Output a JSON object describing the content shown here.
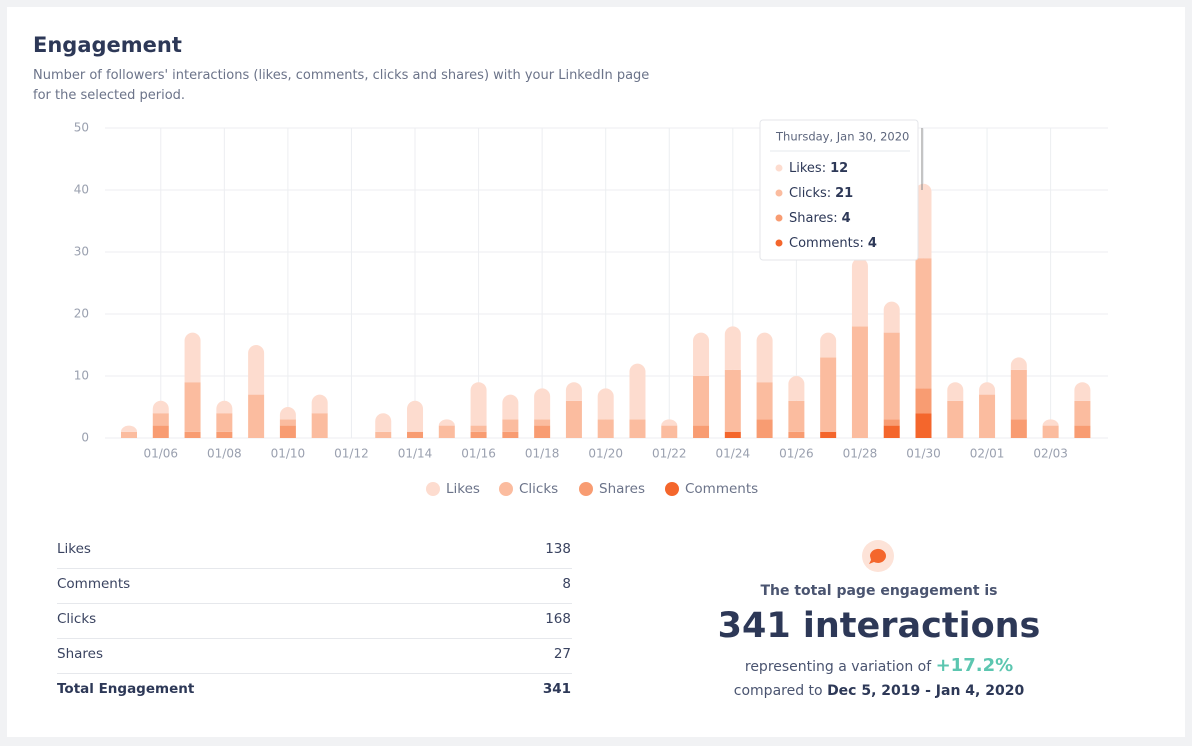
{
  "header": {
    "title": "Engagement",
    "subtitle": [
      "Number of followers' interactions (likes, comments, clicks and shares) with your LinkedIn page",
      "for the selected period."
    ]
  },
  "chart_data": {
    "type": "stacked-bar",
    "categories": [
      null,
      "01/06",
      null,
      "01/08",
      null,
      "01/10",
      null,
      "01/12",
      null,
      "01/14",
      null,
      "01/16",
      null,
      "01/18",
      null,
      "01/20",
      null,
      "01/22",
      null,
      "01/24",
      null,
      "01/26",
      null,
      "01/28",
      null,
      "01/30",
      null,
      "02/01",
      null,
      "02/03",
      null
    ],
    "series": [
      {
        "name": "Likes",
        "color": "#fddccf",
        "values": [
          1,
          2,
          8,
          2,
          8,
          2,
          3,
          0,
          3,
          5,
          1,
          7,
          4,
          5,
          3,
          5,
          9,
          1,
          7,
          7,
          8,
          4,
          4,
          11,
          5,
          12,
          3,
          2,
          2,
          1,
          3
        ]
      },
      {
        "name": "Clicks",
        "color": "#fbbc9f",
        "values": [
          1,
          2,
          8,
          3,
          7,
          1,
          4,
          0,
          1,
          0,
          2,
          1,
          2,
          1,
          6,
          3,
          3,
          2,
          8,
          10,
          6,
          5,
          12,
          18,
          14,
          21,
          6,
          7,
          8,
          2,
          4
        ]
      },
      {
        "name": "Shares",
        "color": "#f89c72",
        "values": [
          0,
          2,
          1,
          1,
          0,
          2,
          0,
          0,
          0,
          1,
          0,
          1,
          1,
          2,
          0,
          0,
          0,
          0,
          2,
          0,
          3,
          1,
          0,
          0,
          1,
          4,
          0,
          0,
          3,
          0,
          2
        ]
      },
      {
        "name": "Comments",
        "color": "#f4662c",
        "values": [
          0,
          0,
          0,
          0,
          0,
          0,
          0,
          0,
          0,
          0,
          0,
          0,
          0,
          0,
          0,
          0,
          0,
          0,
          0,
          1,
          0,
          0,
          1,
          0,
          2,
          4,
          0,
          0,
          0,
          0,
          0
        ]
      }
    ],
    "ylim": [
      0,
      50
    ],
    "yticks": [
      0,
      10,
      20,
      30,
      40,
      50
    ],
    "grid": true,
    "legend": "bottom"
  },
  "tooltip": {
    "title": "Thursday, Jan 30, 2020",
    "labels": [
      "Likes:",
      "Clicks:",
      "Shares:",
      "Comments:"
    ]
  },
  "summary": {
    "rows": [
      [
        "Likes",
        138
      ],
      [
        "Comments",
        8
      ],
      [
        "Clicks",
        168
      ],
      [
        "Shares",
        27
      ]
    ],
    "total": [
      "Total Engagement",
      341
    ]
  },
  "highlight": {
    "lead": "The total page engagement is",
    "headline": "341 interactions",
    "variation_text": "representing a variation of",
    "variation": "+17.2%",
    "compare_text": "compared to",
    "compare_period": "Dec 5, 2019 - Jan 4, 2020"
  }
}
